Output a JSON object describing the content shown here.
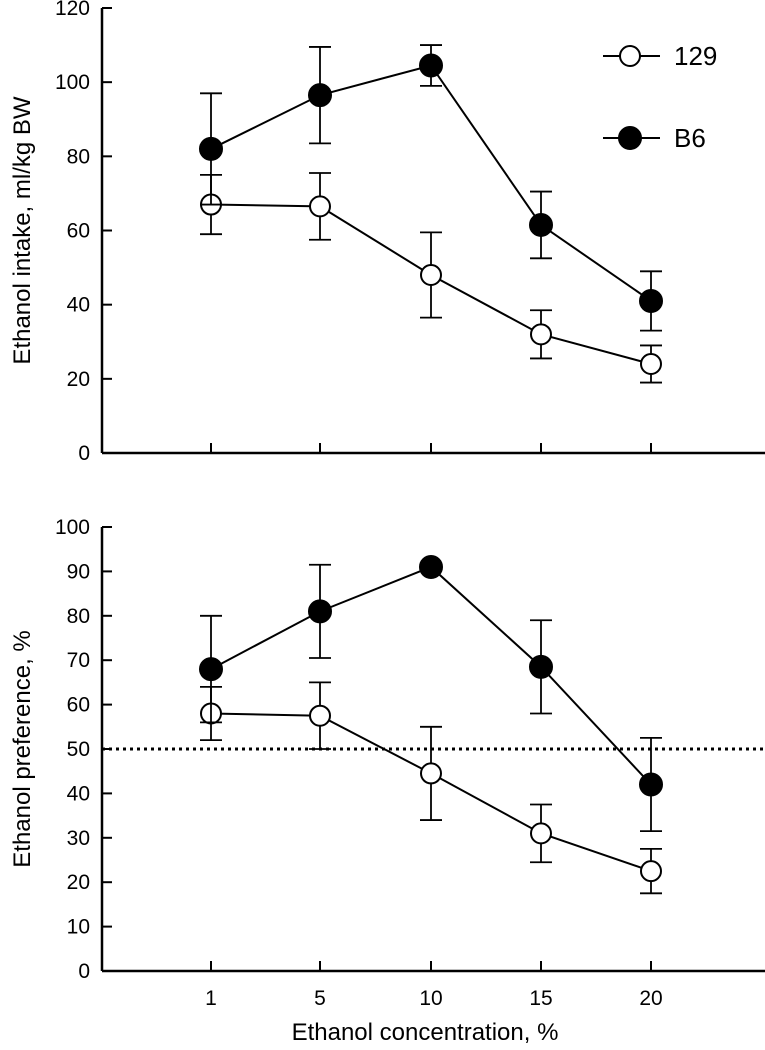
{
  "chart_data": [
    {
      "type": "line",
      "categories": [
        "1",
        "5",
        "10",
        "15",
        "20"
      ],
      "ylabel": "Ethanol intake, ml/kg BW",
      "xlabel": "",
      "ylim": [
        0,
        120
      ],
      "yticks": [
        0,
        20,
        40,
        60,
        80,
        100,
        120
      ],
      "grid": false,
      "legend": "top-right",
      "series": [
        {
          "name": "129",
          "marker": "open-circle",
          "values": [
            67,
            66.5,
            48,
            32,
            24
          ],
          "error": [
            8,
            9,
            11.5,
            6.5,
            5
          ]
        },
        {
          "name": "B6",
          "marker": "filled-circle",
          "values": [
            82,
            96.5,
            104.5,
            61.5,
            41
          ],
          "error": [
            15,
            13,
            5.5,
            9,
            8
          ]
        }
      ]
    },
    {
      "type": "line",
      "categories": [
        "1",
        "5",
        "10",
        "15",
        "20"
      ],
      "ylabel": "Ethanol preference, %",
      "xlabel": "Ethanol concentration, %",
      "ylim": [
        0,
        100
      ],
      "yticks": [
        0,
        10,
        20,
        30,
        40,
        50,
        60,
        70,
        80,
        90,
        100
      ],
      "grid": false,
      "reference_line": 50,
      "series": [
        {
          "name": "129",
          "marker": "open-circle",
          "values": [
            58,
            57.5,
            44.5,
            31,
            22.5
          ],
          "error": [
            6,
            7.5,
            10.5,
            6.5,
            5
          ]
        },
        {
          "name": "B6",
          "marker": "filled-circle",
          "values": [
            68,
            81,
            91,
            68.5,
            42
          ],
          "error": [
            12,
            10.5,
            0,
            10.5,
            10.5
          ]
        }
      ]
    }
  ]
}
